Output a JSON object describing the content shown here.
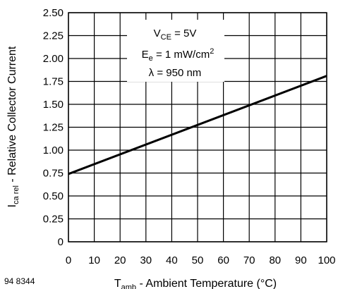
{
  "chart_data": {
    "type": "line",
    "xlabel_main": "T",
    "xlabel_sub": "amb",
    "xlabel_rest": " - Ambient Temperature (°C)",
    "ylabel_main": "I",
    "ylabel_sub": "ca rel",
    "ylabel_rest": " - Relative Collector Current",
    "xlim": [
      0,
      100
    ],
    "ylim": [
      0,
      2.5
    ],
    "x_ticks": [
      "0",
      "10",
      "20",
      "30",
      "40",
      "50",
      "60",
      "70",
      "80",
      "90",
      "100"
    ],
    "y_ticks": [
      "0",
      "0.25",
      "0.50",
      "0.75",
      "1.00",
      "1.25",
      "1.50",
      "1.75",
      "2.00",
      "2.25",
      "2.50"
    ],
    "grid": true,
    "series": [
      {
        "x": [
          0,
          100
        ],
        "y": [
          0.74,
          1.81
        ]
      }
    ],
    "annotations": {
      "line1_main": "V",
      "line1_sub": "CE",
      "line1_rest": " = 5V",
      "line2_main": "E",
      "line2_sub": "e",
      "line2_rest": " = 1 mW/cm",
      "line2_sup": "2",
      "line3": "λ = 950 nm"
    }
  },
  "figure_id": "94 8344",
  "colors": {
    "line": "#000000",
    "grid": "#000000",
    "background": "#ffffff"
  }
}
